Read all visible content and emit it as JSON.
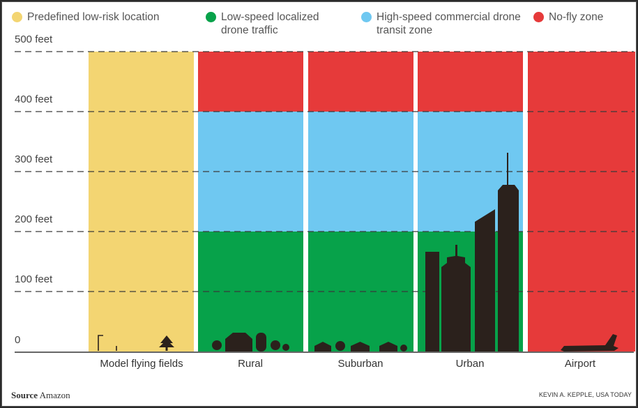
{
  "colors": {
    "yellow": "#f3d572",
    "green": "#07a24a",
    "blue": "#6fc8f1",
    "red": "#e63a3a",
    "silhouette": "#2b211c"
  },
  "legend": [
    {
      "label": "Predefined low-risk location",
      "color": "#f3d572"
    },
    {
      "label": "Low-speed localized drone traffic",
      "color": "#07a24a"
    },
    {
      "label": "High-speed commercial drone transit zone",
      "color": "#6fc8f1"
    },
    {
      "label": "No-fly zone",
      "color": "#e63a3a"
    }
  ],
  "chart_data": {
    "type": "bar",
    "orientation": "vertical stacked zones",
    "categories": [
      "Model flying fields",
      "Rural",
      "Suburban",
      "Urban",
      "Airport"
    ],
    "y_unit": "feet",
    "ylim": [
      0,
      500
    ],
    "y_ticks": [
      {
        "value": 500,
        "label": "500 feet"
      },
      {
        "value": 400,
        "label": "400 feet"
      },
      {
        "value": 300,
        "label": "300 feet"
      },
      {
        "value": 200,
        "label": "200 feet"
      },
      {
        "value": 100,
        "label": "100 feet"
      },
      {
        "value": 0,
        "label": "0"
      }
    ],
    "grid": "dashed horizontal lines at 100-foot intervals",
    "zones": [
      {
        "category": "Model flying fields",
        "segments": [
          {
            "from": 0,
            "to": 500,
            "zone": "Predefined low-risk location"
          }
        ]
      },
      {
        "category": "Rural",
        "segments": [
          {
            "from": 0,
            "to": 200,
            "zone": "Low-speed localized drone traffic"
          },
          {
            "from": 200,
            "to": 400,
            "zone": "High-speed commercial drone transit zone"
          },
          {
            "from": 400,
            "to": 500,
            "zone": "No-fly zone"
          }
        ]
      },
      {
        "category": "Suburban",
        "segments": [
          {
            "from": 0,
            "to": 200,
            "zone": "Low-speed localized drone traffic"
          },
          {
            "from": 200,
            "to": 400,
            "zone": "High-speed commercial drone transit zone"
          },
          {
            "from": 400,
            "to": 500,
            "zone": "No-fly zone"
          }
        ]
      },
      {
        "category": "Urban",
        "segments": [
          {
            "from": 0,
            "to": 200,
            "zone": "Low-speed localized drone traffic"
          },
          {
            "from": 200,
            "to": 400,
            "zone": "High-speed commercial drone transit zone"
          },
          {
            "from": 400,
            "to": 500,
            "zone": "No-fly zone"
          }
        ]
      },
      {
        "category": "Airport",
        "segments": [
          {
            "from": 0,
            "to": 500,
            "zone": "No-fly zone"
          }
        ]
      }
    ],
    "silhouettes": [
      {
        "category": "Model flying fields",
        "icon": "tree-icon"
      },
      {
        "category": "Rural",
        "icon": "barn-icon"
      },
      {
        "category": "Suburban",
        "icon": "houses-icon"
      },
      {
        "category": "Urban",
        "icon": "skyline-icon"
      },
      {
        "category": "Airport",
        "icon": "airplane-icon"
      }
    ]
  },
  "footer": {
    "source_label": "Source",
    "source_value": "Amazon",
    "credit": "KEVIN A. KEPPLE, USA TODAY"
  }
}
